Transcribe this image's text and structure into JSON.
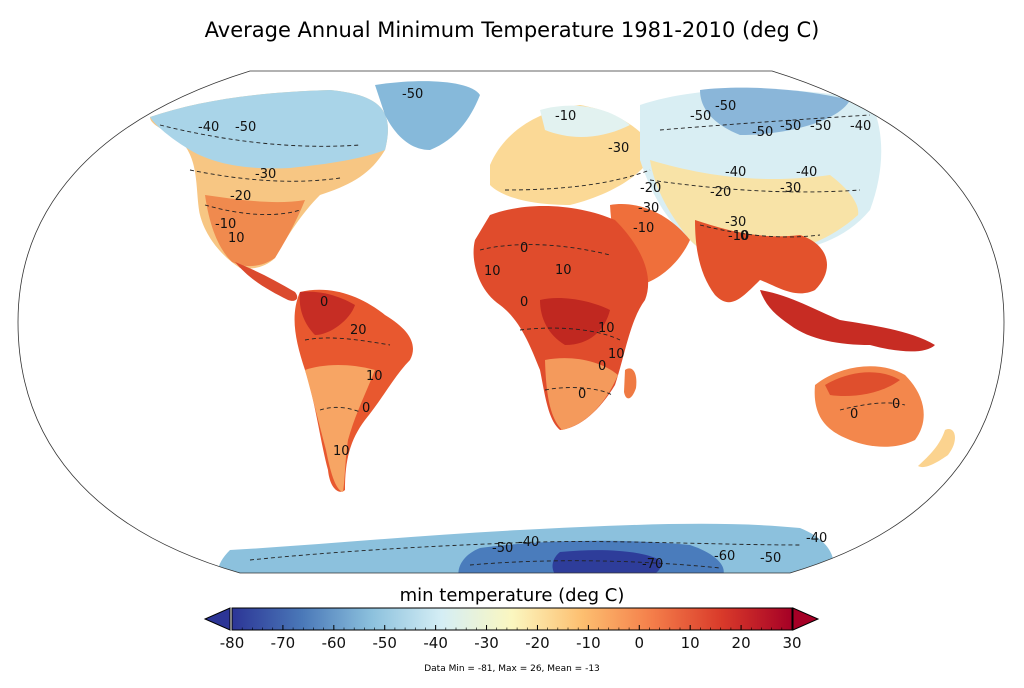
{
  "title": "Average Annual Minimum Temperature 1981-2010 (deg C)",
  "colorbar": {
    "label": "min temperature (deg C)",
    "min": -80,
    "max": 30,
    "ticks": [
      "-80",
      "-70",
      "-60",
      "-50",
      "-40",
      "-30",
      "-20",
      "-10",
      "0",
      "10",
      "20",
      "30"
    ],
    "extend": "both",
    "colors": [
      "#2c3596",
      "#4a78b8",
      "#8cc1dd",
      "#d5eef5",
      "#fbf7c0",
      "#fdbf70",
      "#f47e4a",
      "#d93a2a",
      "#a50026"
    ]
  },
  "stats": "Data Min = -81, Max = 26, Mean = -13",
  "contour_labels": [
    "-40",
    "-50",
    "-50",
    "-30",
    "-20",
    "-10",
    "-10",
    "-50",
    "-30",
    "-50",
    "-50",
    "-40",
    "-30",
    "-40",
    "-50",
    "-50",
    "-20",
    "-40",
    "-30",
    "-20",
    "-30",
    "-10",
    "10",
    "0",
    "-10",
    "0",
    "10",
    "10",
    "0",
    "0",
    "10",
    "0",
    "20",
    "10",
    "10",
    "0",
    "0",
    "10",
    "0",
    "0",
    "-50",
    "-40",
    "-40",
    "-60",
    "-70",
    "-50"
  ]
}
